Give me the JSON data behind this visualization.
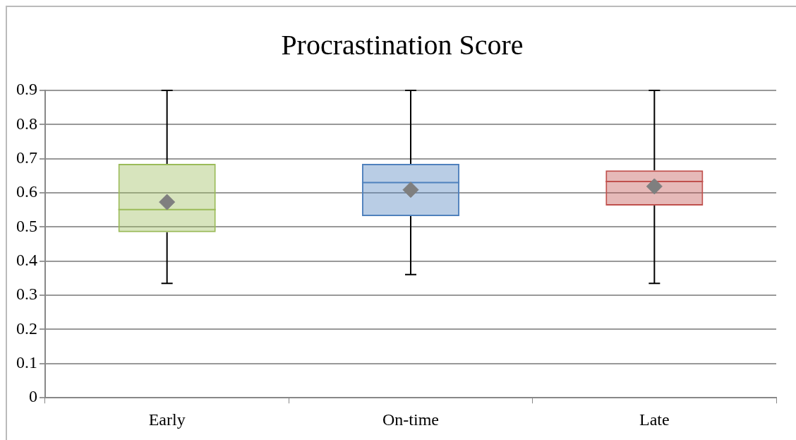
{
  "chart_data": {
    "type": "box",
    "title": "Procrastination Score",
    "categories": [
      "Early",
      "On-time",
      "Late"
    ],
    "boxes": [
      {
        "low": 0.335,
        "q1": 0.485,
        "median": 0.551,
        "q3": 0.685,
        "high": 0.9,
        "mean": 0.573
      },
      {
        "low": 0.361,
        "q1": 0.532,
        "median": 0.63,
        "q3": 0.685,
        "high": 0.9,
        "mean": 0.609
      },
      {
        "low": 0.335,
        "q1": 0.563,
        "median": 0.633,
        "q3": 0.666,
        "high": 0.9,
        "mean": 0.619
      }
    ],
    "colors": [
      "#9bbb59",
      "#4f81bd",
      "#c0504d"
    ],
    "ylim": [
      0,
      0.9
    ],
    "yticks": [
      0,
      0.1,
      0.2,
      0.3,
      0.4,
      0.5,
      0.6,
      0.7,
      0.8,
      0.9
    ],
    "grid": "y",
    "marker": "diamond",
    "legend": false
  }
}
